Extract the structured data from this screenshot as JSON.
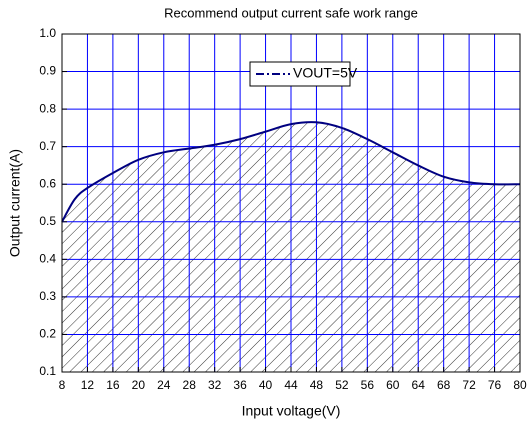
{
  "chart_data": {
    "type": "line",
    "title": "Recommend output current safe work range",
    "x_label": "Input voltage(V)",
    "y_label": "Output current(A)",
    "x": [
      8,
      10,
      12,
      16,
      20,
      24,
      28,
      32,
      36,
      40,
      44,
      48,
      52,
      56,
      60,
      64,
      68,
      72,
      76,
      80
    ],
    "series": [
      {
        "name": "VOUT=5V",
        "color": "#000080",
        "values": [
          0.5,
          0.56,
          0.59,
          0.63,
          0.665,
          0.685,
          0.695,
          0.705,
          0.72,
          0.74,
          0.76,
          0.765,
          0.75,
          0.72,
          0.685,
          0.65,
          0.62,
          0.605,
          0.6,
          0.6
        ]
      }
    ],
    "xlim": [
      8,
      80
    ],
    "xticks": [
      8,
      12,
      16,
      20,
      24,
      28,
      32,
      36,
      40,
      44,
      48,
      52,
      56,
      60,
      64,
      68,
      72,
      76,
      80
    ],
    "ylim": [
      0.1,
      1.0
    ],
    "yticks": [
      0.1,
      0.2,
      0.3,
      0.4,
      0.5,
      0.6,
      0.7,
      0.8,
      0.9,
      {
        "value": 1.0,
        "label": "1.0"
      }
    ],
    "grid": true,
    "grid_color": "#0000ff",
    "fill_under": true
  }
}
